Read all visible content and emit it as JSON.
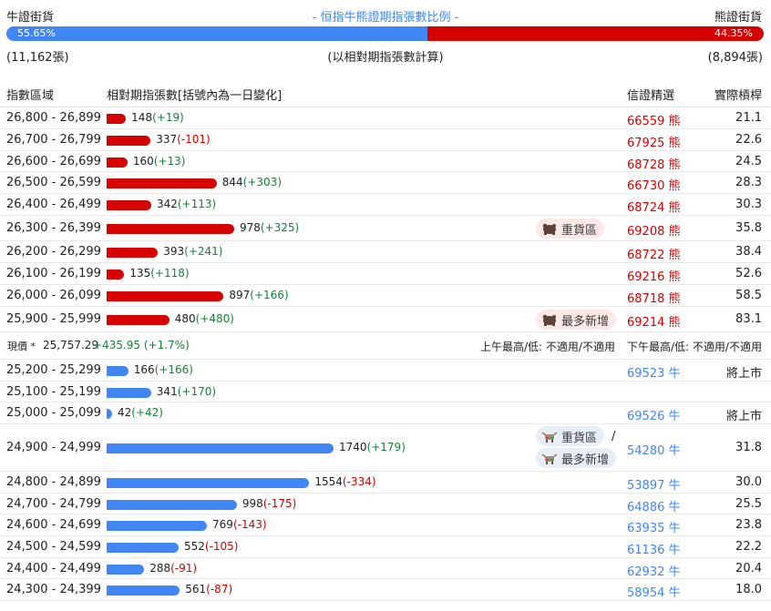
{
  "header": {
    "bull_label": "牛證街貨",
    "title": "- 恒指牛熊證期指張數比例 -",
    "bear_label": "熊證街貨"
  },
  "ratio": {
    "bull_pct_text": "55.65%",
    "bear_pct_text": "44.35%",
    "bull_pct": 55.65,
    "bear_pct": 44.35,
    "bull_count": "(11,162張)",
    "note": "(以相對期指張數計算)",
    "bear_count": "(8,894張)"
  },
  "columns": {
    "range": "指數區域",
    "contracts": "相對期指張數[括號內為一日變化]",
    "best_pick": "信證精選",
    "leverage": "實際槓桿"
  },
  "bear_rows": [
    {
      "range": "26,800 - 26,899",
      "value": 148,
      "val_text": "148",
      "chg": "(+19)",
      "code": "66559",
      "type": "熊",
      "lev": "21.1"
    },
    {
      "range": "26,700 - 26,799",
      "value": 337,
      "val_text": "337",
      "chg": "(-101)",
      "code": "67925",
      "type": "熊",
      "lev": "22.6"
    },
    {
      "range": "26,600 - 26,699",
      "value": 160,
      "val_text": "160",
      "chg": "(+13)",
      "code": "68728",
      "type": "熊",
      "lev": "24.5"
    },
    {
      "range": "26,500 - 26,599",
      "value": 844,
      "val_text": "844",
      "chg": "(+303)",
      "code": "66730",
      "type": "熊",
      "lev": "28.3"
    },
    {
      "range": "26,400 - 26,499",
      "value": 342,
      "val_text": "342",
      "chg": "(+113)",
      "code": "68724",
      "type": "熊",
      "lev": "30.3"
    },
    {
      "range": "26,300 - 26,399",
      "value": 978,
      "val_text": "978",
      "chg": "(+325)",
      "code": "69208",
      "type": "熊",
      "lev": "35.8",
      "tag": "重貨區"
    },
    {
      "range": "26,200 - 26,299",
      "value": 393,
      "val_text": "393",
      "chg": "(+241)",
      "code": "68722",
      "type": "熊",
      "lev": "38.4"
    },
    {
      "range": "26,100 - 26,199",
      "value": 135,
      "val_text": "135",
      "chg": "(+118)",
      "code": "69216",
      "type": "熊",
      "lev": "52.6"
    },
    {
      "range": "26,000 - 26,099",
      "value": 897,
      "val_text": "897",
      "chg": "(+166)",
      "code": "68718",
      "type": "熊",
      "lev": "58.5"
    },
    {
      "range": "25,900 - 25,999",
      "value": 480,
      "val_text": "480",
      "chg": "(+480)",
      "code": "69214",
      "type": "熊",
      "lev": "83.1",
      "tag": "最多新增"
    }
  ],
  "spot": {
    "label": "現價 *",
    "price": "25,757.29",
    "change": "+435.95 (+1.7%)",
    "am": "上午最高/低: 不適用/不適用",
    "pm": "下午最高/低: 不適用/不適用"
  },
  "bull_rows": [
    {
      "range": "25,200 - 25,299",
      "value": 166,
      "val_text": "166",
      "chg": "(+166)",
      "code": "69523",
      "type": "牛",
      "lev": "將上市"
    },
    {
      "range": "25,100 - 25,199",
      "value": 341,
      "val_text": "341",
      "chg": "(+170)",
      "code": "",
      "type": "",
      "lev": ""
    },
    {
      "range": "25,000 - 25,099",
      "value": 42,
      "val_text": "42",
      "chg": "(+42)",
      "code": "69526",
      "type": "牛",
      "lev": "將上市"
    },
    {
      "range": "24,900 - 24,999",
      "value": 1740,
      "val_text": "1740",
      "chg": "(+179)",
      "code": "54280",
      "type": "牛",
      "lev": "31.8",
      "tags": [
        "重貨區",
        "最多新增"
      ],
      "slash": "/"
    },
    {
      "range": "24,800 - 24,899",
      "value": 1554,
      "val_text": "1554",
      "chg": "(-334)",
      "code": "53897",
      "type": "牛",
      "lev": "30.0"
    },
    {
      "range": "24,700 - 24,799",
      "value": 998,
      "val_text": "998",
      "chg": "(-175)",
      "code": "64886",
      "type": "牛",
      "lev": "25.5"
    },
    {
      "range": "24,600 - 24,699",
      "value": 769,
      "val_text": "769",
      "chg": "(-143)",
      "code": "63935",
      "type": "牛",
      "lev": "23.8"
    },
    {
      "range": "24,500 - 24,599",
      "value": 552,
      "val_text": "552",
      "chg": "(-105)",
      "code": "61136",
      "type": "牛",
      "lev": "22.2"
    },
    {
      "range": "24,400 - 24,499",
      "value": 288,
      "val_text": "288",
      "chg": "(-91)",
      "code": "62932",
      "type": "牛",
      "lev": "20.4"
    },
    {
      "range": "24,300 - 24,399",
      "value": 561,
      "val_text": "561",
      "chg": "(-87)",
      "code": "58954",
      "type": "牛",
      "lev": "18.0"
    }
  ],
  "colors": {
    "bull": "#4285f4",
    "bear": "#d50000",
    "pos_change": "#188038",
    "neg_change": "#d50000"
  },
  "icons": {
    "bear_tag": "bear-icon",
    "bull_tag": "bull-icon"
  }
}
